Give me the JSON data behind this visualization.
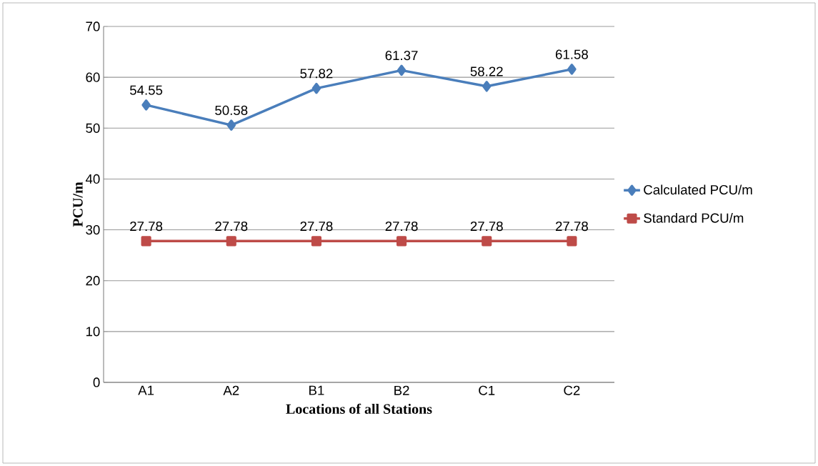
{
  "chart_data": {
    "type": "line",
    "xlabel": "Locations of all Stations",
    "ylabel": "PCU/m",
    "categories": [
      "A1",
      "A2",
      "B1",
      "B2",
      "C1",
      "C2"
    ],
    "series": [
      {
        "name": "Calculated PCU/m",
        "color": "#4a7ebb",
        "marker": "diamond",
        "values": [
          54.55,
          50.58,
          57.82,
          61.37,
          58.22,
          61.58
        ]
      },
      {
        "name": "Standard PCU/m",
        "color": "#be4b48",
        "marker": "square",
        "values": [
          27.78,
          27.78,
          27.78,
          27.78,
          27.78,
          27.78
        ]
      }
    ],
    "ylim": [
      0,
      70
    ],
    "yticks": [
      0,
      10,
      20,
      30,
      40,
      50,
      60,
      70
    ],
    "grid": "y",
    "legend": "right",
    "data_labels": true,
    "line_style": "solid"
  }
}
